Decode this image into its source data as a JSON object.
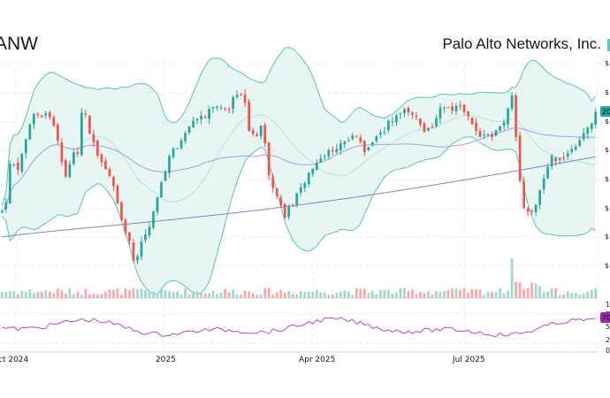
{
  "header": {
    "ticker": "ANW",
    "company": "Palo Alto Networks, Inc."
  },
  "colors": {
    "up": "#26a69a",
    "down": "#ef5350",
    "band_line": "#5cc4b0",
    "band_fill": "#dff2ef",
    "sma_short": "#a8a0d8",
    "sma_long": "#7b86c8",
    "rsi": "#b24cc4",
    "rsi_badge": "#9c27b0",
    "grid": "#e8ecf0"
  },
  "chart_data": {
    "type": "candlestick",
    "x_ticks": [
      "ct 2024",
      "2025",
      "Apr 2025",
      "Jul 2025"
    ],
    "price_axis_labels": [
      "$",
      "$",
      "$",
      "$",
      "$",
      "$",
      "$",
      "$"
    ],
    "rsi_axis_labels": [
      "1",
      "7",
      "5",
      "2",
      "0"
    ],
    "last_price_badge": "20",
    "rsi_badge": "70",
    "indicators": [
      "bollinger_bands",
      "sma_short",
      "sma_long",
      "volume",
      "rsi"
    ],
    "grid": true,
    "legend": "none"
  }
}
